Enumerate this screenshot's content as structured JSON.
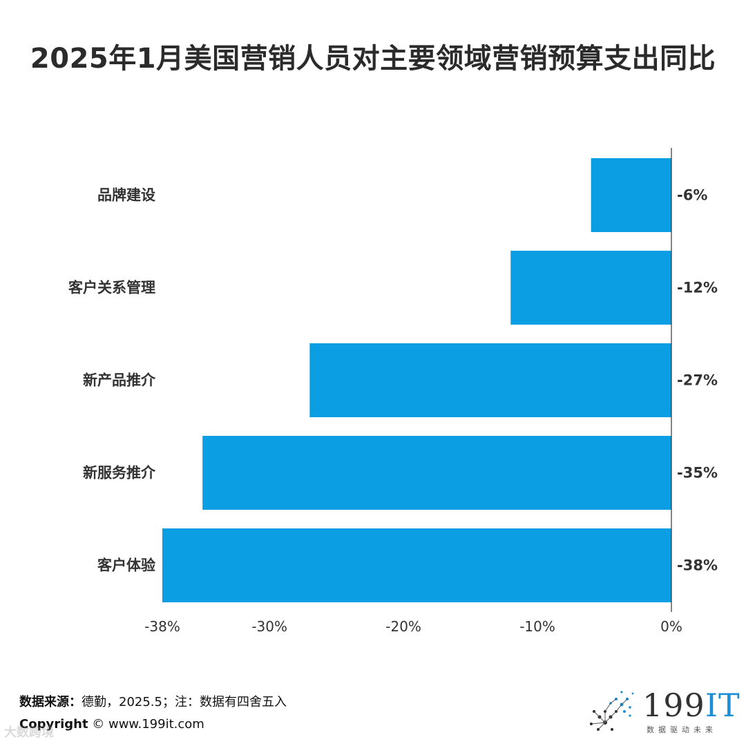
{
  "title": "2025年1月美国营销人员对主要领域营销预算支出同比",
  "chart_data": {
    "type": "bar",
    "orientation": "horizontal",
    "categories": [
      "品牌建设",
      "客户关系管理",
      "新产品推介",
      "新服务推介",
      "客户体验"
    ],
    "values": [
      -6,
      -12,
      -27,
      -35,
      -38
    ],
    "value_labels": [
      "-6%",
      "-12%",
      "-27%",
      "-35%",
      "-38%"
    ],
    "xlim": [
      -38,
      0
    ],
    "x_ticks": [
      -38,
      -30,
      -20,
      -10,
      0
    ],
    "x_tick_labels": [
      "-38%",
      "-30%",
      "-20%",
      "-10%",
      "0%"
    ],
    "bar_color": "#0b9ee3",
    "grid": false
  },
  "footer": {
    "source_label": "数据来源：",
    "source_text": "德勤，2025.5；注：数据有四舍五入",
    "copyright_label": "Copyright",
    "copyright_text": " ©  www.199it.com",
    "watermark": "大数跨境"
  },
  "logo": {
    "name_num": "199",
    "name_it": "IT",
    "slogan": "数据驱动未来",
    "accent": "#1a8fd6"
  }
}
